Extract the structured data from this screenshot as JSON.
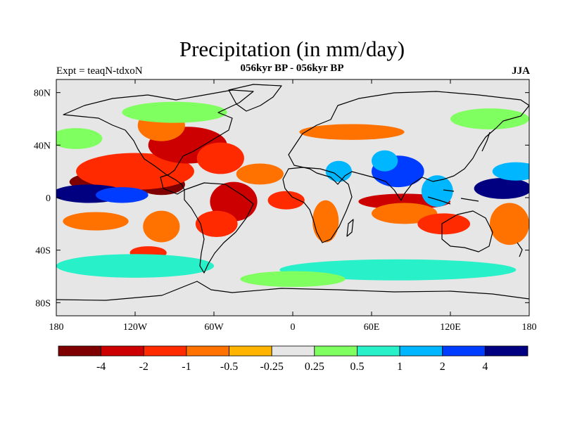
{
  "figure": {
    "title": "Precipitation (in mm/day)",
    "subtitle": "056kyr BP - 056kyr BP",
    "left_label": "Expt = teaqN-tdxoN",
    "right_label": "JJA"
  },
  "map": {
    "lon_range": [
      -180,
      180
    ],
    "lat_range": [
      -90,
      90
    ],
    "lat_ticks": [
      {
        "value": 80,
        "label": "80N"
      },
      {
        "value": 40,
        "label": "40N"
      },
      {
        "value": 0,
        "label": "0"
      },
      {
        "value": -40,
        "label": "40S"
      },
      {
        "value": -80,
        "label": "80S"
      }
    ],
    "lon_ticks": [
      {
        "value": -180,
        "label": "180"
      },
      {
        "value": -120,
        "label": "120W"
      },
      {
        "value": -60,
        "label": "60W"
      },
      {
        "value": 0,
        "label": "0"
      },
      {
        "value": 60,
        "label": "60E"
      },
      {
        "value": 120,
        "label": "120E"
      },
      {
        "value": 180,
        "label": "180"
      }
    ],
    "background_color": "#e6e6e6",
    "coast_color": "#000000",
    "anomalies": [
      {
        "lon": -130,
        "lat": 12,
        "rx": 40,
        "ry": 9,
        "level": 0
      },
      {
        "lon": -100,
        "lat": 10,
        "rx": 18,
        "ry": 8,
        "level": 0
      },
      {
        "lon": -120,
        "lat": 20,
        "rx": 45,
        "ry": 14,
        "level": 2
      },
      {
        "lon": -80,
        "lat": 40,
        "rx": 30,
        "ry": 14,
        "level": 1
      },
      {
        "lon": -100,
        "lat": 55,
        "rx": 18,
        "ry": 12,
        "level": 3
      },
      {
        "lon": -55,
        "lat": 30,
        "rx": 18,
        "ry": 12,
        "level": 2
      },
      {
        "lon": -45,
        "lat": -3,
        "rx": 18,
        "ry": 15,
        "level": 1
      },
      {
        "lon": -58,
        "lat": -20,
        "rx": 16,
        "ry": 10,
        "level": 2
      },
      {
        "lon": -25,
        "lat": 18,
        "rx": 18,
        "ry": 8,
        "level": 3
      },
      {
        "lon": -5,
        "lat": -2,
        "rx": 14,
        "ry": 7,
        "level": 2
      },
      {
        "lon": 25,
        "lat": -18,
        "rx": 10,
        "ry": 16,
        "level": 3
      },
      {
        "lon": 45,
        "lat": 50,
        "rx": 40,
        "ry": 6,
        "level": 3
      },
      {
        "lon": 85,
        "lat": -3,
        "rx": 35,
        "ry": 6,
        "level": 1
      },
      {
        "lon": 85,
        "lat": -12,
        "rx": 25,
        "ry": 8,
        "level": 3
      },
      {
        "lon": 115,
        "lat": -20,
        "rx": 20,
        "ry": 8,
        "level": 2
      },
      {
        "lon": 165,
        "lat": -20,
        "rx": 15,
        "ry": 16,
        "level": 3
      },
      {
        "lon": -150,
        "lat": -18,
        "rx": 25,
        "ry": 7,
        "level": 3
      },
      {
        "lon": -100,
        "lat": -22,
        "rx": 14,
        "ry": 12,
        "level": 3
      },
      {
        "lon": -110,
        "lat": -42,
        "rx": 14,
        "ry": 5,
        "level": 2
      },
      {
        "lon": -155,
        "lat": 3,
        "rx": 28,
        "ry": 7,
        "level": 10
      },
      {
        "lon": -130,
        "lat": 2,
        "rx": 20,
        "ry": 6,
        "level": 9
      },
      {
        "lon": 160,
        "lat": 7,
        "rx": 22,
        "ry": 8,
        "level": 10
      },
      {
        "lon": 170,
        "lat": 20,
        "rx": 18,
        "ry": 7,
        "level": 8
      },
      {
        "lon": 80,
        "lat": 20,
        "rx": 20,
        "ry": 12,
        "level": 9
      },
      {
        "lon": 70,
        "lat": 28,
        "rx": 10,
        "ry": 8,
        "level": 8
      },
      {
        "lon": 110,
        "lat": 5,
        "rx": 12,
        "ry": 12,
        "level": 8
      },
      {
        "lon": 35,
        "lat": 20,
        "rx": 10,
        "ry": 8,
        "level": 8
      },
      {
        "lon": -120,
        "lat": -52,
        "rx": 60,
        "ry": 9,
        "level": 7
      },
      {
        "lon": 80,
        "lat": -55,
        "rx": 90,
        "ry": 8,
        "level": 7
      },
      {
        "lon": 0,
        "lat": -62,
        "rx": 40,
        "ry": 6,
        "level": 6
      },
      {
        "lon": -90,
        "lat": 65,
        "rx": 40,
        "ry": 8,
        "level": 6
      },
      {
        "lon": 150,
        "lat": 60,
        "rx": 30,
        "ry": 8,
        "level": 6
      },
      {
        "lon": -165,
        "lat": 45,
        "rx": 20,
        "ry": 8,
        "level": 6
      }
    ]
  },
  "colorbar": {
    "colors": [
      "#7f0000",
      "#cc0000",
      "#ff2a00",
      "#ff7200",
      "#ffb500",
      "#e6e6e6",
      "#80ff60",
      "#28f0c8",
      "#00b6ff",
      "#003cff",
      "#000080"
    ],
    "labels": [
      "-4",
      "-2",
      "-1",
      "-0.5",
      "-0.25",
      "0.25",
      "0.5",
      "1",
      "2",
      "4"
    ]
  }
}
